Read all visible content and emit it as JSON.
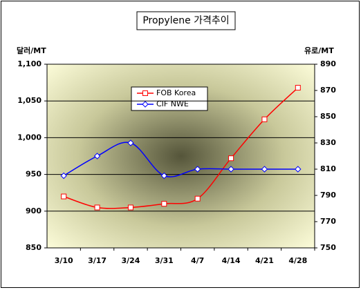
{
  "chart_data": {
    "type": "line",
    "title": "Propylene 가격추이",
    "y_label": "달러/MT",
    "y2_label": "유로/MT",
    "categories": [
      "3/10",
      "3/17",
      "3/24",
      "3/31",
      "4/7",
      "4/14",
      "4/21",
      "4/28"
    ],
    "series": [
      {
        "name": "FOB Korea",
        "color": "#ff0000",
        "values": [
          920,
          905,
          905,
          910,
          917,
          972,
          1025,
          1068
        ]
      },
      {
        "name": "CIF NWE",
        "color": "#0000ff",
        "axis": "y2",
        "values": [
          805,
          820,
          830,
          805,
          810,
          810,
          810,
          810
        ]
      }
    ],
    "ylim": [
      850,
      1100
    ],
    "yticks": [
      850,
      900,
      950,
      {
        "value": 1000,
        "label": "1,000"
      },
      {
        "value": 1050,
        "label": "1,050"
      },
      {
        "value": 1100,
        "label": "1,100"
      }
    ],
    "y2lim": [
      750,
      890
    ],
    "y2ticks": [
      750,
      770,
      790,
      810,
      830,
      850,
      870,
      890
    ],
    "grid": true,
    "legend": "top-left"
  }
}
